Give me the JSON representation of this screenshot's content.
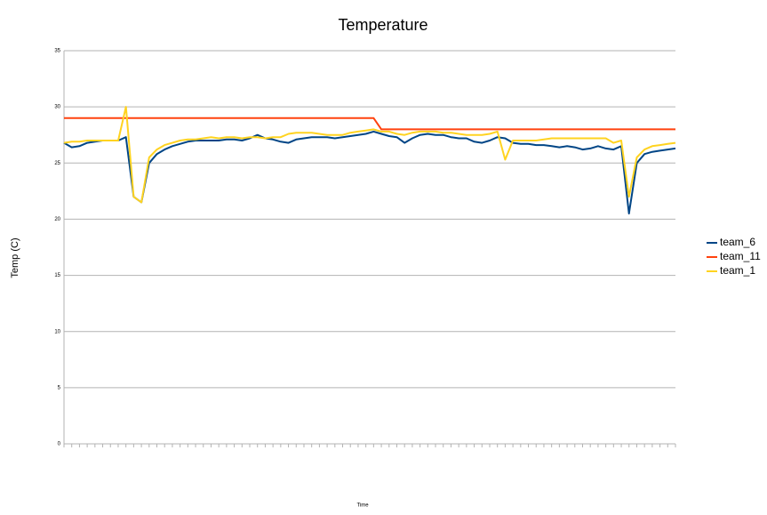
{
  "chart_data": {
    "type": "line",
    "title": "Temperature",
    "xlabel": "Time",
    "ylabel": "Temp (C)",
    "categories": [
      null,
      null,
      null,
      null,
      null,
      null,
      null,
      null,
      null,
      null,
      null,
      null,
      null,
      null,
      null,
      null,
      null,
      null,
      null,
      null,
      null,
      null,
      null,
      null,
      null,
      null,
      null,
      null,
      null,
      null,
      null,
      null,
      null,
      null,
      null,
      null,
      null,
      null,
      null,
      null,
      null,
      null,
      null,
      null,
      null,
      null,
      null,
      null,
      null,
      null,
      null,
      null,
      null,
      null,
      null,
      null,
      null,
      null,
      null,
      null,
      null,
      null,
      null,
      null,
      null,
      null,
      null,
      null,
      null,
      null,
      null,
      null,
      null,
      null,
      null,
      null,
      null,
      null,
      null,
      null
    ],
    "series": [
      {
        "name": "team_6",
        "color": "#004586",
        "values": [
          26.8,
          26.4,
          26.5,
          26.8,
          26.9,
          27,
          27,
          27,
          27.3,
          22,
          21.5,
          25,
          25.8,
          26.2,
          26.5,
          26.7,
          26.9,
          27,
          27,
          27,
          27,
          27.1,
          27.1,
          27,
          27.2,
          27.5,
          27.2,
          27.1,
          26.9,
          26.8,
          27.1,
          27.2,
          27.3,
          27.3,
          27.3,
          27.2,
          27.3,
          27.4,
          27.5,
          27.6,
          27.8,
          27.6,
          27.4,
          27.3,
          26.8,
          27.2,
          27.5,
          27.6,
          27.5,
          27.5,
          27.3,
          27.2,
          27.2,
          26.9,
          26.8,
          27,
          27.3,
          27.2,
          26.8,
          26.7,
          26.7,
          26.6,
          26.6,
          26.5,
          26.4,
          26.5,
          26.4,
          26.2,
          26.3,
          26.5,
          26.3,
          26.2,
          26.5,
          20.5,
          25,
          25.8,
          26,
          26.1,
          26.2,
          26.3
        ]
      },
      {
        "name": "team_11",
        "color": "#ff420e",
        "values": [
          29,
          29,
          29,
          29,
          29,
          29,
          29,
          29,
          29,
          29,
          29,
          29,
          29,
          29,
          29,
          29,
          29,
          29,
          29,
          29,
          29,
          29,
          29,
          29,
          29,
          29,
          29,
          29,
          29,
          29,
          29,
          29,
          29,
          29,
          29,
          29,
          29,
          29,
          29,
          29,
          29,
          28,
          28,
          28,
          28,
          28,
          28,
          28,
          28,
          28,
          28,
          28,
          28,
          28,
          28,
          28,
          28,
          28,
          28,
          28,
          28,
          28,
          28,
          28,
          28,
          28,
          28,
          28,
          28,
          28,
          28,
          28,
          28,
          28,
          28,
          28,
          28,
          28,
          28,
          28
        ]
      },
      {
        "name": "team_1",
        "color": "#ffd320",
        "values": [
          26.8,
          26.9,
          26.9,
          27,
          27,
          27,
          27,
          27,
          30,
          22,
          21.5,
          25.5,
          26.2,
          26.6,
          26.8,
          27,
          27.1,
          27.1,
          27.2,
          27.3,
          27.2,
          27.3,
          27.3,
          27.2,
          27.3,
          27.3,
          27.2,
          27.3,
          27.3,
          27.6,
          27.7,
          27.7,
          27.7,
          27.6,
          27.5,
          27.5,
          27.5,
          27.7,
          27.8,
          27.9,
          28,
          27.8,
          27.8,
          27.6,
          27.5,
          27.7,
          27.8,
          27.8,
          27.8,
          27.7,
          27.7,
          27.6,
          27.5,
          27.5,
          27.5,
          27.6,
          27.8,
          25.3,
          27,
          27,
          27,
          27,
          27.1,
          27.2,
          27.2,
          27.2,
          27.2,
          27.2,
          27.2,
          27.2,
          27.2,
          26.8,
          27,
          22,
          25.5,
          26.2,
          26.5,
          26.6,
          26.7,
          26.8
        ]
      }
    ],
    "ylim": [
      0,
      35
    ],
    "yticks": [
      0,
      5,
      10,
      15,
      20,
      25,
      30,
      35
    ],
    "grid": true,
    "legend": "right"
  }
}
